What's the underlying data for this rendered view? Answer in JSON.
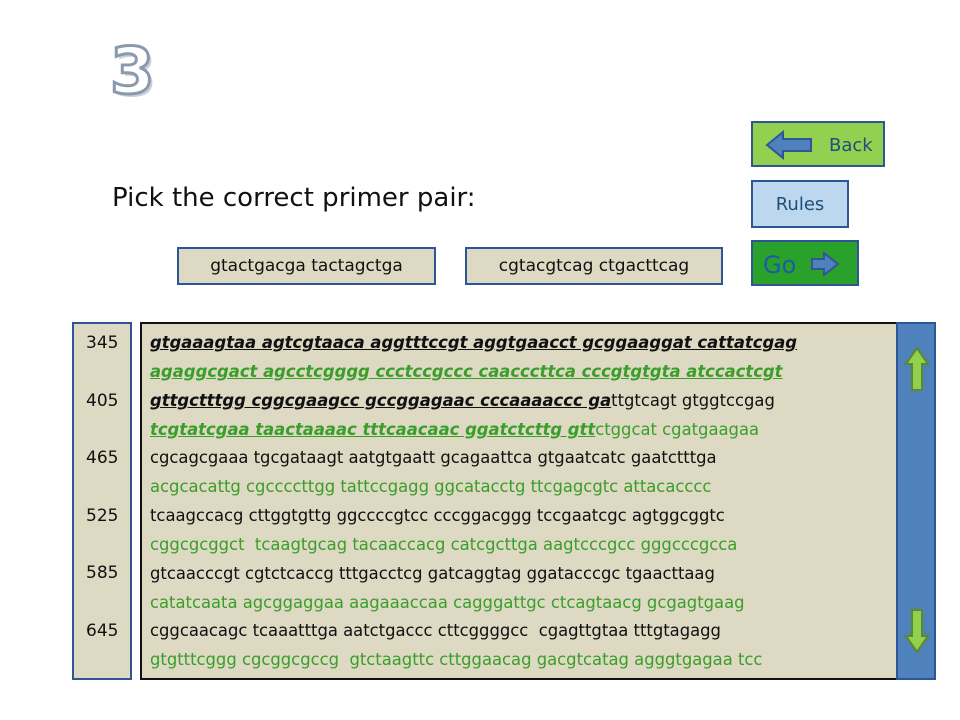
{
  "slide": {
    "number": "3"
  },
  "nav": {
    "back_label": "Back",
    "rules_label": "Rules",
    "go_label": "Go"
  },
  "question": "Pick the correct primer pair:",
  "primers": [
    "gtactgacga tactagctga",
    "cgtacgtcag ctgacttcag"
  ],
  "line_numbers": [
    "345",
    "405",
    "465",
    "525",
    "585",
    "645"
  ],
  "sequence": {
    "l1": "gtgaaagtaa agtcgtaaca aggtttccgt aggtgaacct gcggaaggat cattatcgag",
    "l2": "agaggcgact agcctcgggg ccctccgccc caacccttca cccgtgtgta atccactcgt",
    "l3_bold": "gttgctttgg cggcgaagcc gccggagaac cccaaaaccc ga",
    "l3_rest": "ttgtcagt gtggtccgag",
    "l4_bold": "tcgtatcgaa taactaaaac tttcaacaac ggatctcttg gtt",
    "l4_rest": "ctggcat cgatgaagaa",
    "l5": "cgcagcgaaa tgcgataagt aatgtgaatt gcagaattca gtgaatcatc gaatctttga",
    "l6": "acgcacattg cgccccttgg tattccgagg ggcatacctg ttcgagcgtc attacacccc",
    "l7": "tcaagccacg cttggtgttg ggccccgtcc cccggacggg tccgaatcgc agtggcggtc",
    "l8": "cggcgcggct  tcaagtgcag tacaaccacg catcgcttga aagtcccgcc gggcccgcca",
    "l9": "gtcaacccgt cgtctcaccg tttgacctcg gatcaggtag ggatacccgc tgaacttaag",
    "l10": "catatcaata agcggaggaa aagaaaccaa cagggattgc ctcagtaacg gcgagtgaag",
    "l11": "cggcaacagc tcaaatttga aatctgaccc cttcggggcc  cgagttgtaa tttgtagagg",
    "l12": "gtgtttcggg cgcggcgccg  gtctaagttc cttggaacag gacgtcatag agggtgagaa tcc"
  },
  "colors": {
    "accent_green": "#92d050",
    "go_green": "#2aa12a",
    "rules_blue": "#bdd7ee",
    "panel": "#ddd9c3",
    "scroll_blue": "#4f81bd",
    "seq_green": "#3a9e2a"
  }
}
